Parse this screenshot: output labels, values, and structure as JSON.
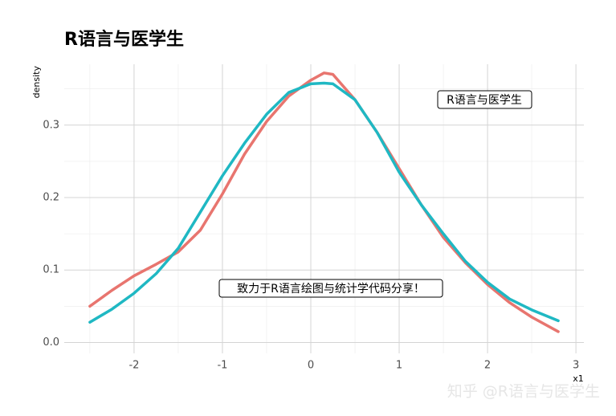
{
  "chart_data": {
    "type": "line",
    "title": "R语言与医学生",
    "y_label": "density",
    "x_label": "x1",
    "x": [
      -2.5,
      -2.25,
      -2,
      -1.75,
      -1.5,
      -1.25,
      -1,
      -0.75,
      -0.5,
      -0.25,
      0,
      0.15,
      0.25,
      0.5,
      0.75,
      1,
      1.25,
      1.5,
      1.75,
      2,
      2.25,
      2.5,
      2.8
    ],
    "series": [
      {
        "color": "#e8756f",
        "values": [
          0.05,
          0.072,
          0.092,
          0.108,
          0.125,
          0.155,
          0.205,
          0.26,
          0.305,
          0.34,
          0.362,
          0.372,
          0.37,
          0.335,
          0.29,
          0.24,
          0.19,
          0.145,
          0.11,
          0.08,
          0.055,
          0.035,
          0.015
        ]
      },
      {
        "color": "#1fb8c3",
        "values": [
          0.028,
          0.046,
          0.068,
          0.095,
          0.13,
          0.18,
          0.23,
          0.275,
          0.315,
          0.345,
          0.357,
          0.358,
          0.357,
          0.335,
          0.29,
          0.235,
          0.19,
          0.15,
          0.112,
          0.083,
          0.06,
          0.045,
          0.03
        ]
      }
    ],
    "xlim": [
      -2.79,
      3.09
    ],
    "ylim": [
      -0.015,
      0.384
    ],
    "xticks": [
      -2,
      -1,
      0,
      1,
      2,
      3
    ],
    "yticks": [
      {
        "value": 0,
        "label": "0.0"
      },
      0.1,
      0.2,
      0.3
    ],
    "grid": true,
    "annotations": [
      "R语言与医学生",
      "致力于R语言绘图与统计学代码分享！"
    ],
    "watermark": "知乎 @R语言与医学生"
  }
}
